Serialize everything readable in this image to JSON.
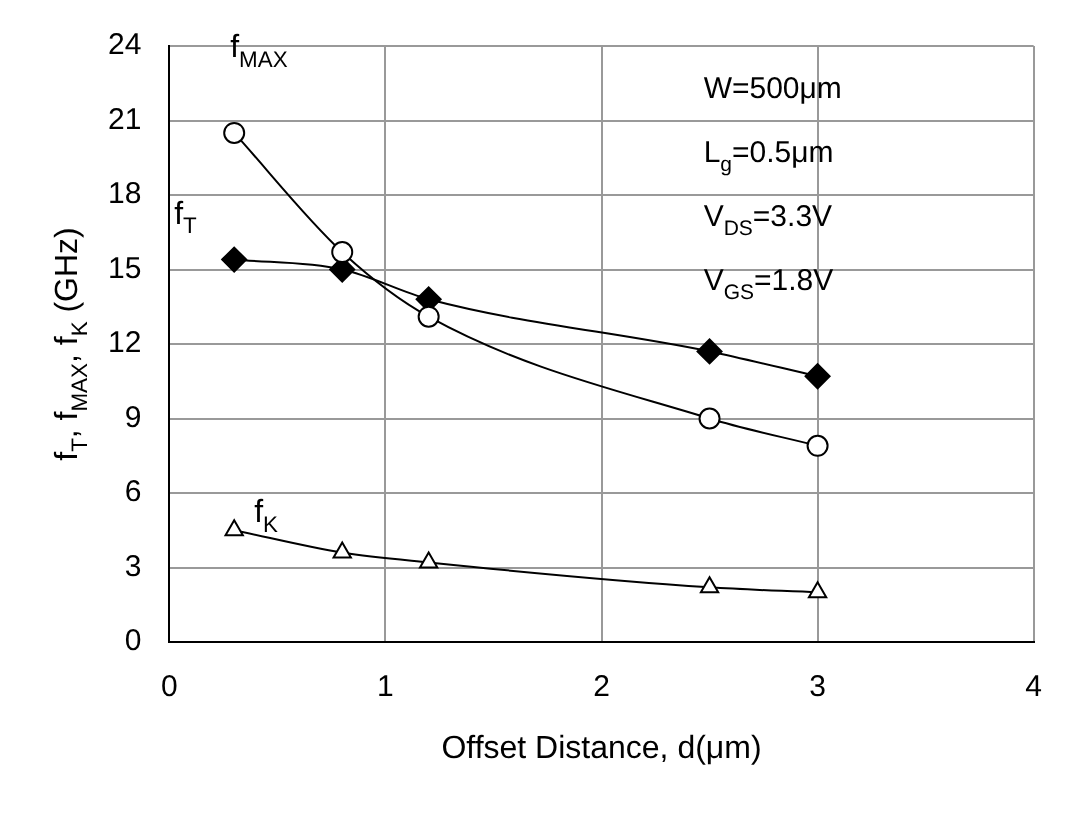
{
  "chart_data": {
    "type": "line",
    "xlabel": "Offset Distance, d(μm)",
    "ylabel": "f$_{T}$, f$_{MAX}$, f$_{K}$ (GHz)",
    "xlim": [
      0,
      4
    ],
    "xticks": [
      0,
      1,
      2,
      3,
      4
    ],
    "ylim": [
      0,
      24
    ],
    "yticks": [
      0,
      3,
      6,
      9,
      12,
      15,
      18,
      21,
      24
    ],
    "grid": true,
    "legend": false,
    "series": [
      {
        "name": "f$_{MAX}$",
        "color": "#000000",
        "marker": "circle",
        "x": [
          0.3,
          0.8,
          1.2,
          2.5,
          3.0
        ],
        "values": [
          20.5,
          15.7,
          13.1,
          9.0,
          7.9
        ]
      },
      {
        "name": "f$_{T}$",
        "color": "#000000",
        "marker": "diamond",
        "x": [
          0.3,
          0.8,
          1.2,
          2.5,
          3.0
        ],
        "values": [
          15.4,
          15.0,
          13.8,
          11.7,
          10.7
        ]
      },
      {
        "name": "f$_{K}$",
        "color": "#000000",
        "marker": "triangle",
        "x": [
          0.3,
          0.8,
          1.2,
          2.5,
          3.0
        ],
        "values": [
          4.5,
          3.6,
          3.2,
          2.2,
          2.0
        ]
      }
    ],
    "annotations": [
      "W=500μm",
      "L$_{g}$=0.5μm",
      "V$_{DS}$=3.3V",
      "V$_{GS}$=1.8V"
    ]
  }
}
